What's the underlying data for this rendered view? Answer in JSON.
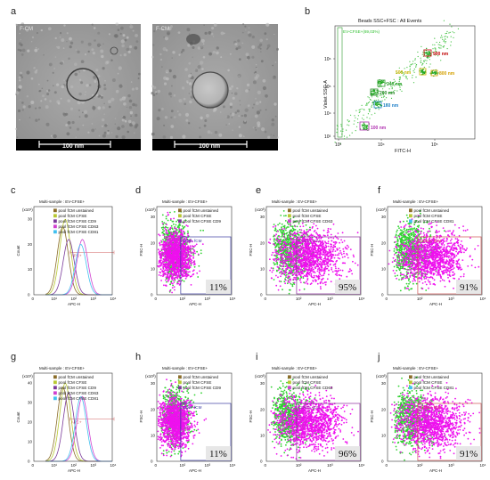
{
  "figure": {
    "panel_letters": [
      "a",
      "b",
      "c",
      "d",
      "e",
      "f",
      "g",
      "h",
      "i",
      "j"
    ]
  },
  "sem": {
    "left_label": "F-CM",
    "right_label": "F-CM",
    "scale_bar": "100 nm"
  },
  "beads": {
    "title": "Beads SSC+FSC : All Events",
    "gate_label": "EV-CFSE+(69,03%)",
    "xlabel": "FITC-H",
    "ylabel": "Violet SSC-A",
    "xticks": [
      "10³",
      "10⁴",
      "10⁵"
    ],
    "yticks": [
      "10³",
      "10⁴",
      "10⁵",
      "10⁶"
    ],
    "populations": [
      {
        "label": "900 nm",
        "color": "#c00000"
      },
      {
        "label": "800 nm",
        "color": "#d4a000"
      },
      {
        "label": "500 nm",
        "color": "#c8b400"
      },
      {
        "label": "240 nm",
        "color": "#2a9a2a"
      },
      {
        "label": "200 nm",
        "color": "#2a8a2a"
      },
      {
        "label": "160 nm",
        "color": "#1e7fc8"
      },
      {
        "label": "100 nm",
        "color": "#b030b0"
      }
    ]
  },
  "panels": {
    "c": {
      "title": "Multi-sample : EV-CFSE+",
      "ylabel": "Count",
      "xlabel": "APC-H",
      "yexp": "(x10¹)",
      "yticks": [
        "0",
        "10",
        "20",
        "30"
      ],
      "xticks": [
        "0",
        "10¹",
        "10²",
        "10³",
        "10⁴"
      ],
      "legend": [
        "pool fCM unstained",
        "pool fCM CFSE",
        "pool fCM CFSE CD9",
        "pool fCM CFSE CD63",
        "pool fCM CFSE CD81"
      ],
      "gate": "APC+"
    },
    "d": {
      "title": "Multi-sample : EV-CFSE+",
      "ylabel": "FSC-H",
      "xlabel": "APC-H",
      "yexp": "(x10³)",
      "yticks": [
        "0",
        "10",
        "20",
        "30"
      ],
      "xticks": [
        "0",
        "10²",
        "10³",
        "10⁴"
      ],
      "legend": [
        "pool fCM unstained",
        "pool fCM CFSE",
        "pool fCM CFSE CD9"
      ],
      "gate": "CD9+ fCM",
      "percent": "11%"
    },
    "e": {
      "title": "Multi-sample : EV-CFSE+",
      "ylabel": "FSC-H",
      "xlabel": "APC-H",
      "yexp": "(x10³)",
      "yticks": [
        "0",
        "10",
        "20",
        "30"
      ],
      "xticks": [
        "0",
        "10²",
        "10³",
        "10⁴"
      ],
      "legend": [
        "pool fCM unstained",
        "pool fCM CFSE",
        "pool fCM CFSE CD63"
      ],
      "gate": "CD63+ fCM",
      "percent": "95%"
    },
    "f": {
      "title": "Multi-sample : EV-CFSE+",
      "ylabel": "FSC-H",
      "xlabel": "APC-H",
      "yexp": "(x10³)",
      "yticks": [
        "0",
        "10",
        "20",
        "30"
      ],
      "xticks": [
        "0",
        "10²",
        "10³",
        "10⁴"
      ],
      "legend": [
        "pool fCM unstained",
        "pool fCM CFSE",
        "pool fCM CFSE CD81"
      ],
      "gate": "CD81+ fCM",
      "percent": "91%"
    },
    "g": {
      "title": "Multi-sample : EV-CFSE+",
      "ylabel": "Count",
      "xlabel": "APC-H",
      "yexp": "(x10¹)",
      "yticks": [
        "0",
        "10",
        "20",
        "30",
        "40"
      ],
      "xticks": [
        "0",
        "10¹",
        "10²",
        "10³",
        "10⁴"
      ],
      "legend": [
        "pool fCM unstained",
        "pool fCM CFSE",
        "pool fCM CFSE CD9",
        "pool fCM CFSE CD63",
        "pool fCM CFSE CD81"
      ],
      "gate": "APC+"
    },
    "h": {
      "title": "Multi-sample : EV-CFSE+",
      "ylabel": "FSC-H",
      "xlabel": "APC-H",
      "yexp": "(x10³)",
      "yticks": [
        "0",
        "10",
        "20",
        "30"
      ],
      "xticks": [
        "0",
        "10²",
        "10³",
        "10⁴"
      ],
      "legend": [
        "pool fCM unstained",
        "pool fCM CFSE",
        "pool fCM CFSE CD9"
      ],
      "gate": "CD9+ fCM",
      "percent": "11%"
    },
    "i": {
      "title": "Multi-sample : EV-CFSE+",
      "ylabel": "FSC-H",
      "xlabel": "APC-H",
      "yexp": "(x10³)",
      "yticks": [
        "0",
        "10",
        "20",
        "30"
      ],
      "xticks": [
        "0",
        "10²",
        "10³",
        "10⁴"
      ],
      "legend": [
        "pool fCM unstained",
        "pool fCM CFSE",
        "pool fCM CFSE CD63"
      ],
      "gate": "CD63+ fCM",
      "percent": "96%"
    },
    "j": {
      "title": "Multi-sample : EV-CFSE+",
      "ylabel": "FSC-H",
      "xlabel": "APC-H",
      "yexp": "(x10³)",
      "yticks": [
        "0",
        "10",
        "20",
        "30"
      ],
      "xticks": [
        "0",
        "10²",
        "10³",
        "10⁴"
      ],
      "legend": [
        "pool fCM unstained",
        "pool fCM CFSE",
        "pool fCM CFSE CD81"
      ],
      "gate": "CD81+ fCM",
      "percent": "91%"
    }
  },
  "colors": {
    "unstained": "#8b6d2a",
    "cfse": "#b8c832",
    "cd9": "#7a3a9a",
    "cd63": "#d040d0",
    "cd81": "#40c0f0",
    "green_events": "#2fd12f",
    "magenta_events": "#ee10ee",
    "gate_cd9": "#3a3aa0",
    "gate_cd63": "#8a2a9a",
    "gate_cd81": "#d05050"
  },
  "chart_data": [
    {
      "type": "line",
      "panel": "c",
      "xlabel": "APC-H",
      "ylabel": "Count",
      "ylim": [
        0,
        35
      ],
      "x_scale": "log",
      "series": [
        {
          "name": "pool fCM unstained",
          "peak_x": 30,
          "peak_y": 27
        },
        {
          "name": "pool fCM CFSE",
          "peak_x": 40,
          "peak_y": 30
        },
        {
          "name": "pool fCM CFSE CD9",
          "peak_x": 60,
          "peak_y": 22
        },
        {
          "name": "pool fCM CFSE CD63",
          "peak_x": 300,
          "peak_y": 22
        },
        {
          "name": "pool fCM CFSE CD81",
          "peak_x": 250,
          "peak_y": 20
        }
      ]
    },
    {
      "type": "line",
      "panel": "g",
      "xlabel": "APC-H",
      "ylabel": "Count",
      "ylim": [
        0,
        45
      ],
      "x_scale": "log",
      "series": [
        {
          "name": "pool fCM unstained",
          "peak_x": 30,
          "peak_y": 38
        },
        {
          "name": "pool fCM CFSE",
          "peak_x": 40,
          "peak_y": 40
        },
        {
          "name": "pool fCM CFSE CD9",
          "peak_x": 60,
          "peak_y": 35
        },
        {
          "name": "pool fCM CFSE CD63",
          "peak_x": 300,
          "peak_y": 33
        },
        {
          "name": "pool fCM CFSE CD81",
          "peak_x": 250,
          "peak_y": 33
        }
      ]
    },
    {
      "type": "scatter",
      "panel": "d",
      "gate": "CD9+ fCM",
      "percent": 11
    },
    {
      "type": "scatter",
      "panel": "e",
      "gate": "CD63+ fCM",
      "percent": 95
    },
    {
      "type": "scatter",
      "panel": "f",
      "gate": "CD81+ fCM",
      "percent": 91
    },
    {
      "type": "scatter",
      "panel": "h",
      "gate": "CD9+ fCM",
      "percent": 11
    },
    {
      "type": "scatter",
      "panel": "i",
      "gate": "CD63+ fCM",
      "percent": 96
    },
    {
      "type": "scatter",
      "panel": "j",
      "gate": "CD81+ fCM",
      "percent": 91
    }
  ]
}
